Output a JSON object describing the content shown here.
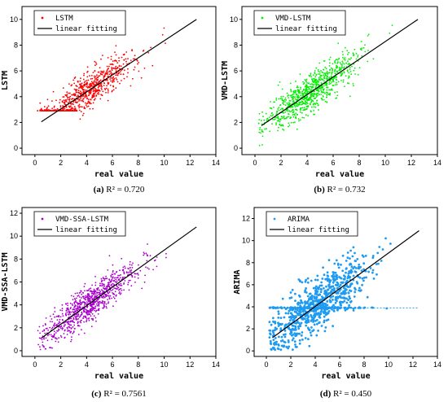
{
  "chart_data": [
    {
      "type": "scatter",
      "xlabel": "real value",
      "ylabel": "LSTM",
      "xlim": [
        -1,
        14
      ],
      "ylim": [
        -0.5,
        11
      ],
      "xticks": [
        "0",
        "2",
        "4",
        "6",
        "8",
        "10",
        "12",
        "14"
      ],
      "yticks": [
        "0",
        "2",
        "4",
        "6",
        "8",
        "10"
      ],
      "series": [
        {
          "name": "LSTM",
          "color": "#ff0000",
          "kind": "points",
          "center": [
            4.2,
            4.5
          ],
          "spread": [
            1.8,
            1.5
          ],
          "count": 700,
          "floor": 2.9
        },
        {
          "name": "linear fitting",
          "color": "#000000",
          "kind": "line",
          "x": [
            0.5,
            12.5
          ],
          "y": [
            2.05,
            10.0
          ]
        }
      ],
      "legend_position": "top-left",
      "caption_label": "(a)",
      "caption_text": "R² = 0.720"
    },
    {
      "type": "scatter",
      "xlabel": "real value",
      "ylabel": "VMD-LSTM",
      "xlim": [
        -1,
        14
      ],
      "ylim": [
        -0.5,
        11
      ],
      "xticks": [
        "0",
        "2",
        "4",
        "6",
        "8",
        "10",
        "12",
        "14"
      ],
      "yticks": [
        "0",
        "2",
        "4",
        "6",
        "8",
        "10"
      ],
      "series": [
        {
          "name": "VMD-LSTM",
          "color": "#00ee00",
          "kind": "points",
          "center": [
            4.2,
            4.2
          ],
          "spread": [
            1.8,
            1.6
          ],
          "count": 900
        },
        {
          "name": "linear fitting",
          "color": "#000000",
          "kind": "line",
          "x": [
            0.5,
            12.5
          ],
          "y": [
            1.75,
            10.0
          ]
        }
      ],
      "legend_position": "top-left",
      "caption_label": "(b)",
      "caption_text": "R² = 0.732"
    },
    {
      "type": "scatter",
      "xlabel": "real value",
      "ylabel": "VMD-SSA-LSTM",
      "xlim": [
        -1,
        14
      ],
      "ylim": [
        -0.5,
        12.5
      ],
      "xticks": [
        "0",
        "2",
        "4",
        "6",
        "8",
        "10",
        "12",
        "14"
      ],
      "yticks": [
        "0",
        "2",
        "4",
        "6",
        "8",
        "10",
        "12"
      ],
      "series": [
        {
          "name": "VMD-SSA-LSTM",
          "color": "#aa00cc",
          "kind": "points",
          "center": [
            4.2,
            4.0
          ],
          "spread": [
            1.8,
            1.7
          ],
          "count": 900
        },
        {
          "name": "linear fitting",
          "color": "#000000",
          "kind": "line",
          "x": [
            0.5,
            12.5
          ],
          "y": [
            1.1,
            10.8
          ]
        }
      ],
      "legend_position": "top-left",
      "caption_label": "(c)",
      "caption_text": "R² = 0.7561"
    },
    {
      "type": "scatter",
      "xlabel": "real value",
      "ylabel": "ARIMA",
      "xlim": [
        -1,
        14
      ],
      "ylim": [
        -0.5,
        13
      ],
      "xticks": [
        "0",
        "2",
        "4",
        "6",
        "8",
        "10",
        "12",
        "14"
      ],
      "yticks": [
        "0",
        "2",
        "4",
        "6",
        "8",
        "10",
        "12"
      ],
      "series": [
        {
          "name": "ARIMA",
          "color": "#1e9bf0",
          "kind": "points",
          "center": [
            4.2,
            4.2
          ],
          "spread": [
            2.0,
            2.6
          ],
          "count": 900,
          "band": 3.9
        },
        {
          "name": "linear fitting",
          "color": "#000000",
          "kind": "line",
          "x": [
            0.5,
            12.5
          ],
          "y": [
            1.2,
            10.9
          ]
        }
      ],
      "legend_position": "top-left",
      "caption_label": "(d)",
      "caption_text": "R² = 0.450"
    }
  ]
}
